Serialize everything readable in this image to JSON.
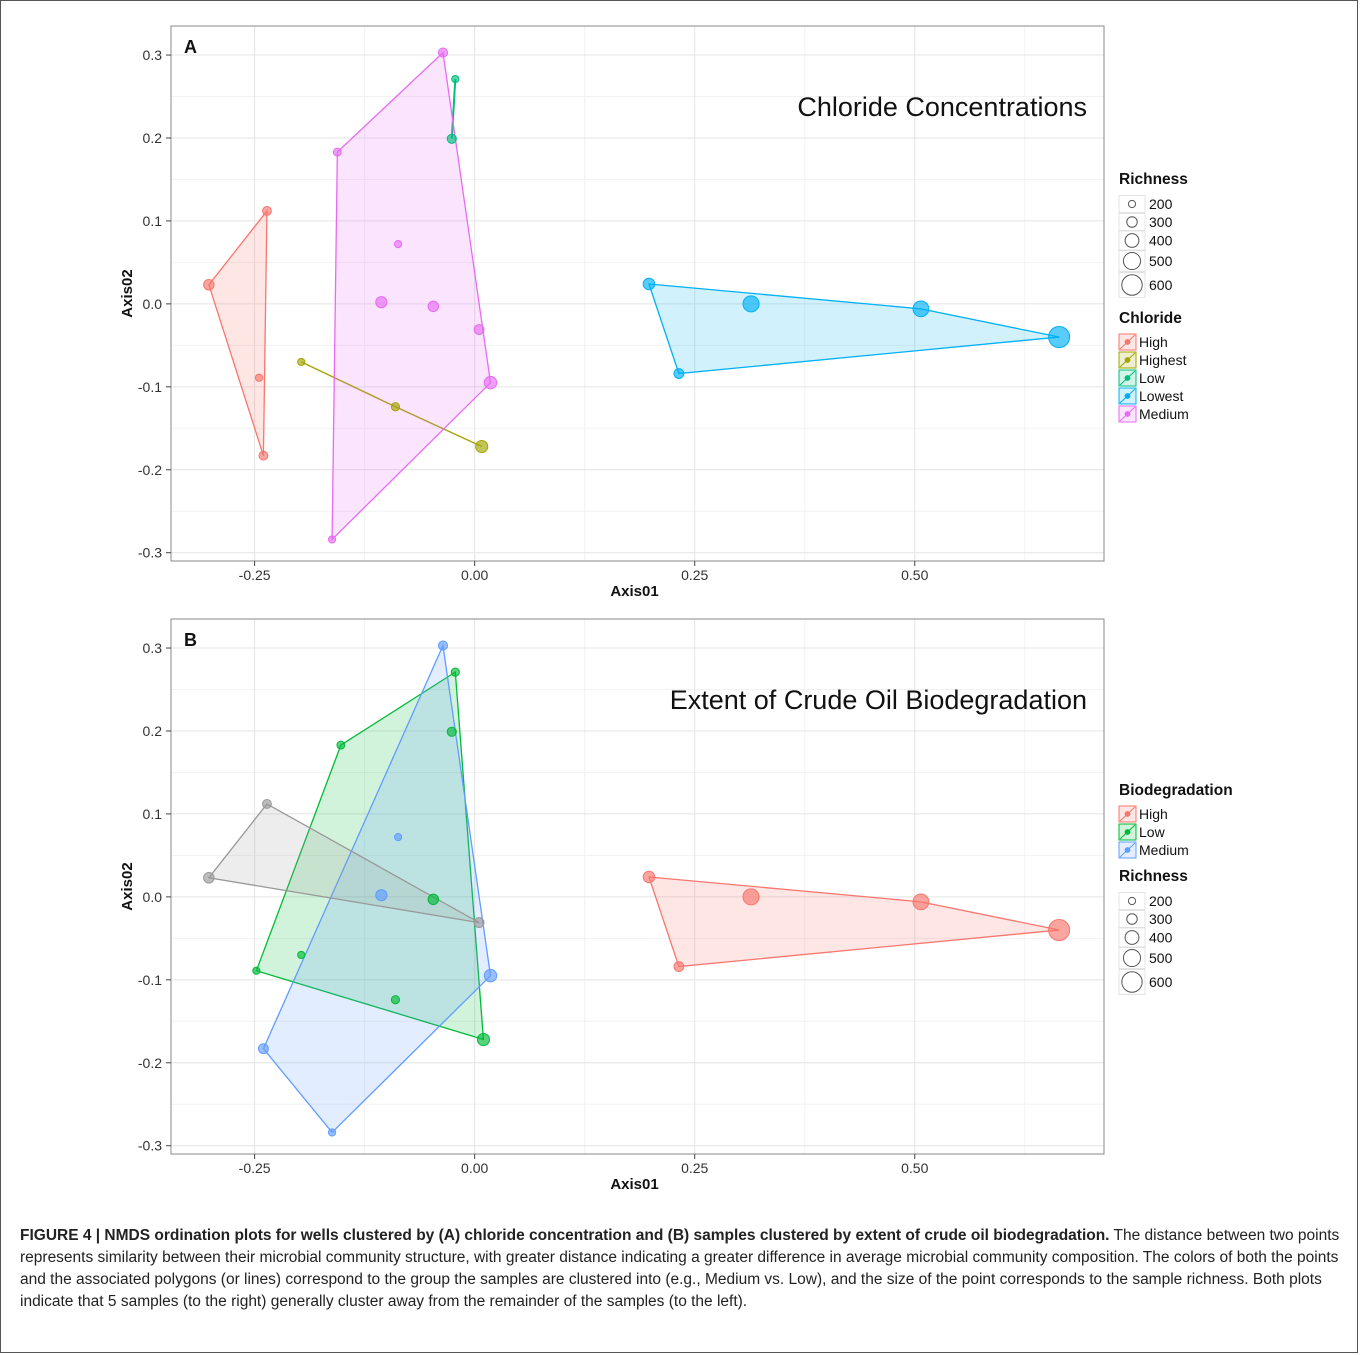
{
  "figure": {
    "caption_title": "FIGURE 4 | NMDS ordination plots for wells clustered by (A) chloride concentration and (B) samples clustered by extent of crude oil biodegradation.",
    "caption_body": "The distance between two points represents similarity between their microbial community structure, with greater distance indicating a greater difference in average microbial community composition. The colors of both the points and the associated polygons (or lines) correspond to the group the samples are clustered into (e.g., Medium vs. Low), and the size of the point corresponds to the sample richness. Both plots indicate that 5 samples (to the right) generally cluster away from the remainder of the samples (to the left)."
  },
  "chart_data": [
    {
      "type": "scatter",
      "panel_label": "A",
      "title": "Chloride Concentrations",
      "xlabel": "Axis01",
      "ylabel": "Axis02",
      "xlim": [
        -0.345,
        0.715
      ],
      "ylim": [
        -0.31,
        0.335
      ],
      "xticks": [
        -0.25,
        0.0,
        0.25,
        0.5
      ],
      "xtick_labels": [
        "-0.25",
        "0.00",
        "0.25",
        "0.50"
      ],
      "yticks": [
        -0.3,
        -0.2,
        -0.1,
        0.0,
        0.1,
        0.2,
        0.3
      ],
      "ytick_labels": [
        "-0.3",
        "-0.2",
        "-0.1",
        "0.0",
        "0.1",
        "0.2",
        "0.3"
      ],
      "grid": true,
      "legend_position": "right",
      "legend_order": [
        "size",
        "color"
      ],
      "series_legend_title": "Chloride",
      "series": [
        {
          "name": "High",
          "color": "#F8766D",
          "shape": "polygon",
          "points": [
            {
              "x": -0.302,
              "y": 0.023,
              "richness": 300
            },
            {
              "x": -0.236,
              "y": 0.112,
              "richness": 250
            },
            {
              "x": -0.24,
              "y": -0.183,
              "richness": 250
            },
            {
              "x": -0.245,
              "y": -0.089,
              "richness": 200
            }
          ]
        },
        {
          "name": "Highest",
          "color": "#A3A500",
          "shape": "line",
          "points": [
            {
              "x": -0.197,
              "y": -0.07,
              "richness": 200
            },
            {
              "x": -0.09,
              "y": -0.124,
              "richness": 230
            },
            {
              "x": 0.008,
              "y": -0.172,
              "richness": 350
            }
          ]
        },
        {
          "name": "Low",
          "color": "#00BF7D",
          "shape": "polygon",
          "points": [
            {
              "x": -0.026,
              "y": 0.199,
              "richness": 260
            },
            {
              "x": -0.022,
              "y": 0.271,
              "richness": 200
            }
          ]
        },
        {
          "name": "Lowest",
          "color": "#00B0F6",
          "shape": "polygon",
          "points": [
            {
              "x": 0.198,
              "y": 0.024,
              "richness": 330
            },
            {
              "x": 0.232,
              "y": -0.084,
              "richness": 280
            },
            {
              "x": 0.314,
              "y": 0.0,
              "richness": 470
            },
            {
              "x": 0.507,
              "y": -0.006,
              "richness": 460
            },
            {
              "x": 0.664,
              "y": -0.04,
              "richness": 620
            }
          ]
        },
        {
          "name": "Medium",
          "color": "#E76BF3",
          "shape": "polygon",
          "points": [
            {
              "x": -0.036,
              "y": 0.303,
              "richness": 260
            },
            {
              "x": -0.156,
              "y": 0.183,
              "richness": 220
            },
            {
              "x": -0.162,
              "y": -0.284,
              "richness": 200
            },
            {
              "x": 0.018,
              "y": -0.095,
              "richness": 360
            },
            {
              "x": 0.005,
              "y": -0.031,
              "richness": 280
            },
            {
              "x": -0.087,
              "y": 0.072,
              "richness": 200
            },
            {
              "x": -0.106,
              "y": 0.002,
              "richness": 320
            },
            {
              "x": -0.047,
              "y": -0.003,
              "richness": 300
            }
          ]
        }
      ],
      "richness_legend": {
        "title": "Richness",
        "values": [
          200,
          300,
          400,
          500,
          600
        ]
      }
    },
    {
      "type": "scatter",
      "panel_label": "B",
      "title": "Extent of Crude Oil Biodegradation",
      "xlabel": "Axis01",
      "ylabel": "Axis02",
      "xlim": [
        -0.345,
        0.715
      ],
      "ylim": [
        -0.31,
        0.335
      ],
      "xticks": [
        -0.25,
        0.0,
        0.25,
        0.5
      ],
      "xtick_labels": [
        "-0.25",
        "0.00",
        "0.25",
        "0.50"
      ],
      "yticks": [
        -0.3,
        -0.2,
        -0.1,
        0.0,
        0.1,
        0.2,
        0.3
      ],
      "ytick_labels": [
        "-0.3",
        "-0.2",
        "-0.1",
        "0.0",
        "0.1",
        "0.2",
        "0.3"
      ],
      "grid": true,
      "legend_position": "right",
      "legend_order": [
        "color",
        "size"
      ],
      "series_legend_title": "Biodegradation",
      "series": [
        {
          "name": "High",
          "color": "#F8766D",
          "shape": "polygon",
          "points": [
            {
              "x": 0.198,
              "y": 0.024,
              "richness": 330
            },
            {
              "x": 0.232,
              "y": -0.084,
              "richness": 280
            },
            {
              "x": 0.314,
              "y": 0.0,
              "richness": 470
            },
            {
              "x": 0.507,
              "y": -0.006,
              "richness": 460
            },
            {
              "x": 0.664,
              "y": -0.04,
              "richness": 620
            }
          ]
        },
        {
          "name": "Low",
          "color": "#00BA38",
          "shape": "polygon",
          "points": [
            {
              "x": -0.022,
              "y": 0.271,
              "richness": 230
            },
            {
              "x": -0.152,
              "y": 0.183,
              "richness": 220
            },
            {
              "x": -0.248,
              "y": -0.089,
              "richness": 200
            },
            {
              "x": 0.01,
              "y": -0.172,
              "richness": 350
            },
            {
              "x": -0.026,
              "y": 0.199,
              "richness": 260
            },
            {
              "x": -0.047,
              "y": -0.003,
              "richness": 300
            },
            {
              "x": -0.197,
              "y": -0.07,
              "richness": 200
            },
            {
              "x": -0.09,
              "y": -0.124,
              "richness": 230
            }
          ]
        },
        {
          "name": "Medium",
          "color": "#619CFF",
          "shape": "polygon",
          "points": [
            {
              "x": -0.036,
              "y": 0.303,
              "richness": 260
            },
            {
              "x": 0.018,
              "y": -0.095,
              "richness": 360
            },
            {
              "x": -0.162,
              "y": -0.284,
              "richness": 200
            },
            {
              "x": -0.24,
              "y": -0.183,
              "richness": 280
            },
            {
              "x": -0.087,
              "y": 0.072,
              "richness": 200
            },
            {
              "x": -0.106,
              "y": 0.002,
              "richness": 320
            }
          ]
        },
        {
          "name": "",
          "color": "#999999",
          "shape": "polygon",
          "points": [
            {
              "x": -0.302,
              "y": 0.023,
              "richness": 300
            },
            {
              "x": -0.236,
              "y": 0.112,
              "richness": 250
            },
            {
              "x": 0.005,
              "y": -0.031,
              "richness": 280
            }
          ]
        }
      ],
      "richness_legend": {
        "title": "Richness",
        "values": [
          200,
          300,
          400,
          500,
          600
        ]
      }
    }
  ]
}
